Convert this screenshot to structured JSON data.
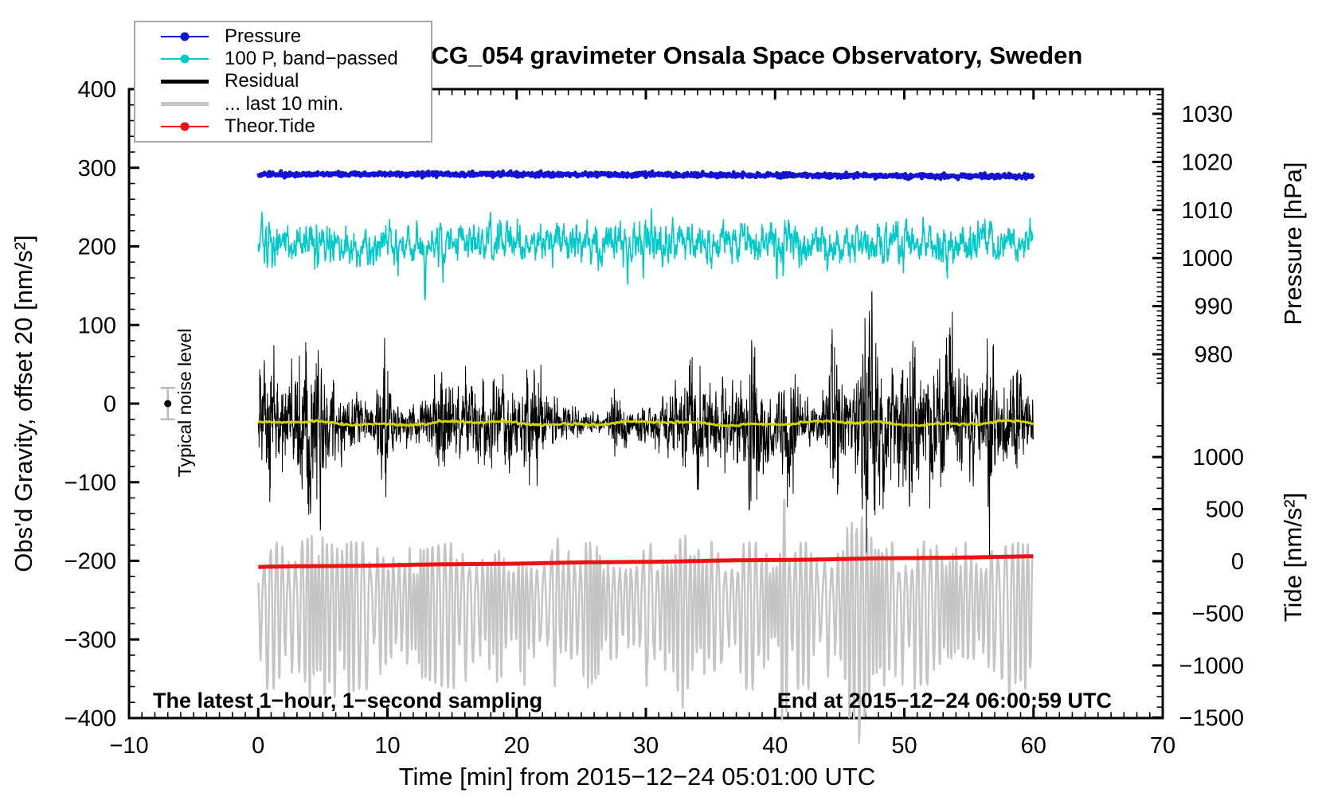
{
  "page": {
    "background": "#ffffff"
  },
  "chart_data": {
    "type": "line",
    "title": "SCG_054 gravimeter Onsala Space Observatory, Sweden",
    "t_range": [
      0,
      59.98
    ],
    "x_axis": {
      "label": "Time [min] from 2015−12−24 05:01:00 UTC",
      "min": -10,
      "max": 70,
      "major_tick": 10,
      "minor_tick": 1
    },
    "y_left": {
      "label": "Obs'd Gravity, offset 20 [nm/s²]",
      "min": -400,
      "max": 400,
      "major_tick": 100,
      "minor_tick": 20
    },
    "y_right_pressure": {
      "label": "Pressure [hPa]",
      "units": "hPa",
      "major_ticks": [
        1030,
        1020,
        1010,
        1000,
        990,
        980
      ],
      "minor_step": 1,
      "minor_range": [
        974,
        1034
      ]
    },
    "y_right_tide": {
      "label": "Tide [nm/s²]",
      "units": "nm/s²",
      "major_ticks": [
        1000,
        500,
        0,
        -500,
        -1000,
        -1500
      ],
      "minor_step": 100,
      "minor_range": [
        -1500,
        1300
      ]
    },
    "annotations": {
      "sampling_note": "The latest 1−hour, 1−second sampling",
      "end_note": "End at 2015−12−24 06:00:59 UTC"
    },
    "noise_marker": {
      "label": "Typical noise level",
      "time_min": -7,
      "value": 0,
      "error": 20,
      "dot_color": "#000000",
      "bar_color": "#bbbbbb"
    },
    "series": [
      {
        "id": "pressure",
        "label": "Pressure",
        "axis": "pressure",
        "color": "#1313d2",
        "width": 4.5,
        "approx": "nearly constant, about 1017 hPa for the whole hour",
        "synth": {
          "kind": "flat",
          "base": 1017.2,
          "amp": 0.25,
          "noise": 0.25,
          "points": 1600,
          "seed": 101
        }
      },
      {
        "id": "bandpassed",
        "label": "100 P, band−passed",
        "axis": "gravity",
        "color": "#00c9c9",
        "width": 1.6,
        "approx": "noisy band centred near +205 nm/s², sd about 13, down-spikes to 140",
        "synth": {
          "kind": "ar",
          "center": 205,
          "ar": 0.68,
          "innov": 9.2,
          "points": 2400,
          "seed": 202,
          "clip": [
            122,
            262
          ],
          "events": [
            [
              0.7,
              -40,
              0.06
            ],
            [
              12.9,
              -60,
              0.07
            ],
            [
              14.3,
              -35,
              0.05
            ],
            [
              28.6,
              -52,
              0.06
            ],
            [
              29.8,
              -45,
              0.05
            ],
            [
              40.15,
              -48,
              0.06
            ],
            [
              46.8,
              -30,
              0.05
            ],
            [
              55.6,
              -32,
              0.05
            ]
          ]
        }
      },
      {
        "id": "residual",
        "label": "Residual",
        "axis": "gravity",
        "color": "#000000",
        "width": 1,
        "approx": "1 Hz noise centred near −25 nm/s², bursts reaching about +160/−190",
        "synth": {
          "kind": "band",
          "center": -25,
          "ar": 0.5,
          "scale": 0.55,
          "points": 3620,
          "seed": 303,
          "clip": [
            -195,
            168
          ],
          "env_base": 30,
          "env_sin": [
            [
              13,
              0.37,
              1.0
            ],
            [
              9,
              0.11,
              2.1
            ]
          ],
          "events": [
            [
              4.2,
              48,
              0.9
            ],
            [
              9.8,
              55,
              0.5
            ],
            [
              14.2,
              30,
              0.6
            ],
            [
              21.3,
              25,
              1.0
            ],
            [
              27.8,
              35,
              0.5
            ],
            [
              33.5,
              30,
              0.8
            ],
            [
              38.4,
              55,
              0.6
            ],
            [
              41.2,
              45,
              0.5
            ],
            [
              44.6,
              50,
              0.6
            ],
            [
              47.3,
              80,
              0.9
            ],
            [
              50.3,
              40,
              0.5
            ],
            [
              53.6,
              35,
              0.6
            ],
            [
              56.5,
              85,
              0.35
            ],
            [
              58.6,
              45,
              0.5
            ]
          ]
        }
      },
      {
        "id": "last10",
        "label": "... last 10 min.",
        "axis": "gravity",
        "color": "#c5c5c5",
        "width": 2.5,
        "approx": "microseism wave centred near −245 nm/s², amplitude 30–130, dips through the frame near 41 min",
        "synth": {
          "kind": "wave",
          "center": -245,
          "base_amp": 38,
          "amp_ar": 0.985,
          "amp_innov": 7,
          "amp_cap": 57,
          "up_scale": 0.72,
          "down_scale": 1.25,
          "points": 3000,
          "seed": 404,
          "period": [
            0.42,
            [
              0.1,
              0.9,
              0
            ],
            [
              0.08,
              2.3,
              1
            ]
          ],
          "events": [
            [
              5.3,
              30,
              1.2
            ],
            [
              12.5,
              -12,
              1.5
            ],
            [
              24,
              10,
              2
            ],
            [
              33,
              25,
              1.2
            ],
            [
              40.7,
              95,
              0.25
            ],
            [
              46.3,
              70,
              0.8
            ],
            [
              51.8,
              40,
              0.9
            ],
            [
              57.3,
              30,
              0.7
            ]
          ]
        }
      },
      {
        "id": "theor_tide",
        "label": "Theor.Tide",
        "axis": "tide",
        "color": "#ee1111",
        "width": 5,
        "approx": "smooth rise from about −55 to +46 nm/s² (tide axis) over the hour",
        "synth": {
          "kind": "trend",
          "start": -55,
          "end": 46,
          "wiggle": [
            1.8,
            0.55,
            0.2
          ],
          "points": 260
        }
      },
      {
        "id": "smoothed_residual",
        "label": "",
        "axis": "gravity",
        "color": "#d3d300",
        "width": 3,
        "approx": "running mean of the residual, about −25 nm/s²",
        "synth": {
          "kind": "smooth",
          "center": -25,
          "sin": [
            [
              2,
              0.45,
              0.3
            ],
            [
              1.2,
              1.3,
              1.7
            ]
          ],
          "noise": 0.7,
          "points": 520,
          "seed": 505
        }
      }
    ]
  },
  "legend": {
    "border_color": "#a8a8a8",
    "items": [
      {
        "label": "Pressure",
        "color": "#1313d2",
        "line_width": 2,
        "marker": "dot"
      },
      {
        "label": "100 P, band−passed",
        "color": "#00c9c9",
        "line_width": 2,
        "marker": "dot"
      },
      {
        "label": "Residual",
        "color": "#000000",
        "line_width": 5,
        "marker": "none"
      },
      {
        "label": "... last 10 min.",
        "color": "#c5c5c5",
        "line_width": 5,
        "marker": "none"
      },
      {
        "label": "Theor.Tide",
        "color": "#ee1111",
        "line_width": 2,
        "marker": "dot"
      }
    ]
  }
}
